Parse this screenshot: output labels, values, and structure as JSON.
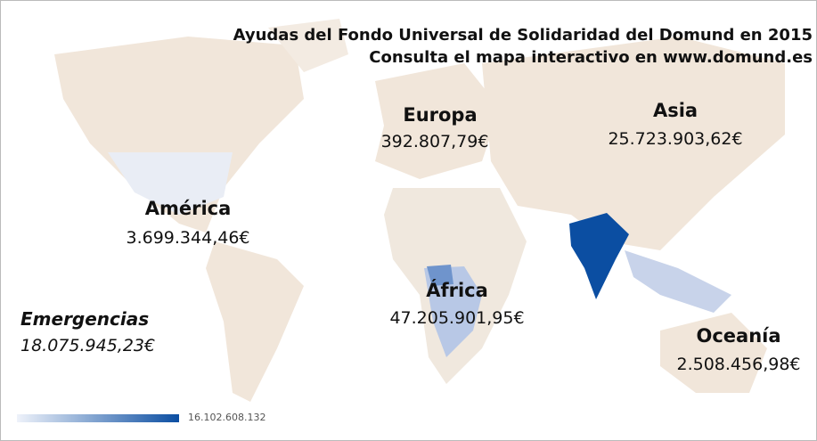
{
  "title": "Ayudas del Fondo Universal de Solidaridad del Domund en 2015",
  "subtitle": "Consulta el mapa interactivo en www.domund.es",
  "regions": [
    {
      "name": "Europa",
      "amount": "392.807,79€"
    },
    {
      "name": "Asia",
      "amount": "25.723.903,62€"
    },
    {
      "name": "América",
      "amount": "3.699.344,46€"
    },
    {
      "name": "Emergencias",
      "amount": "18.075.945,23€"
    },
    {
      "name": "África",
      "amount": "47.205.901,95€"
    },
    {
      "name": "Oceanía",
      "amount": "2.508.456,98€"
    }
  ],
  "legend": {
    "max_label": "16.102.608.132"
  }
}
